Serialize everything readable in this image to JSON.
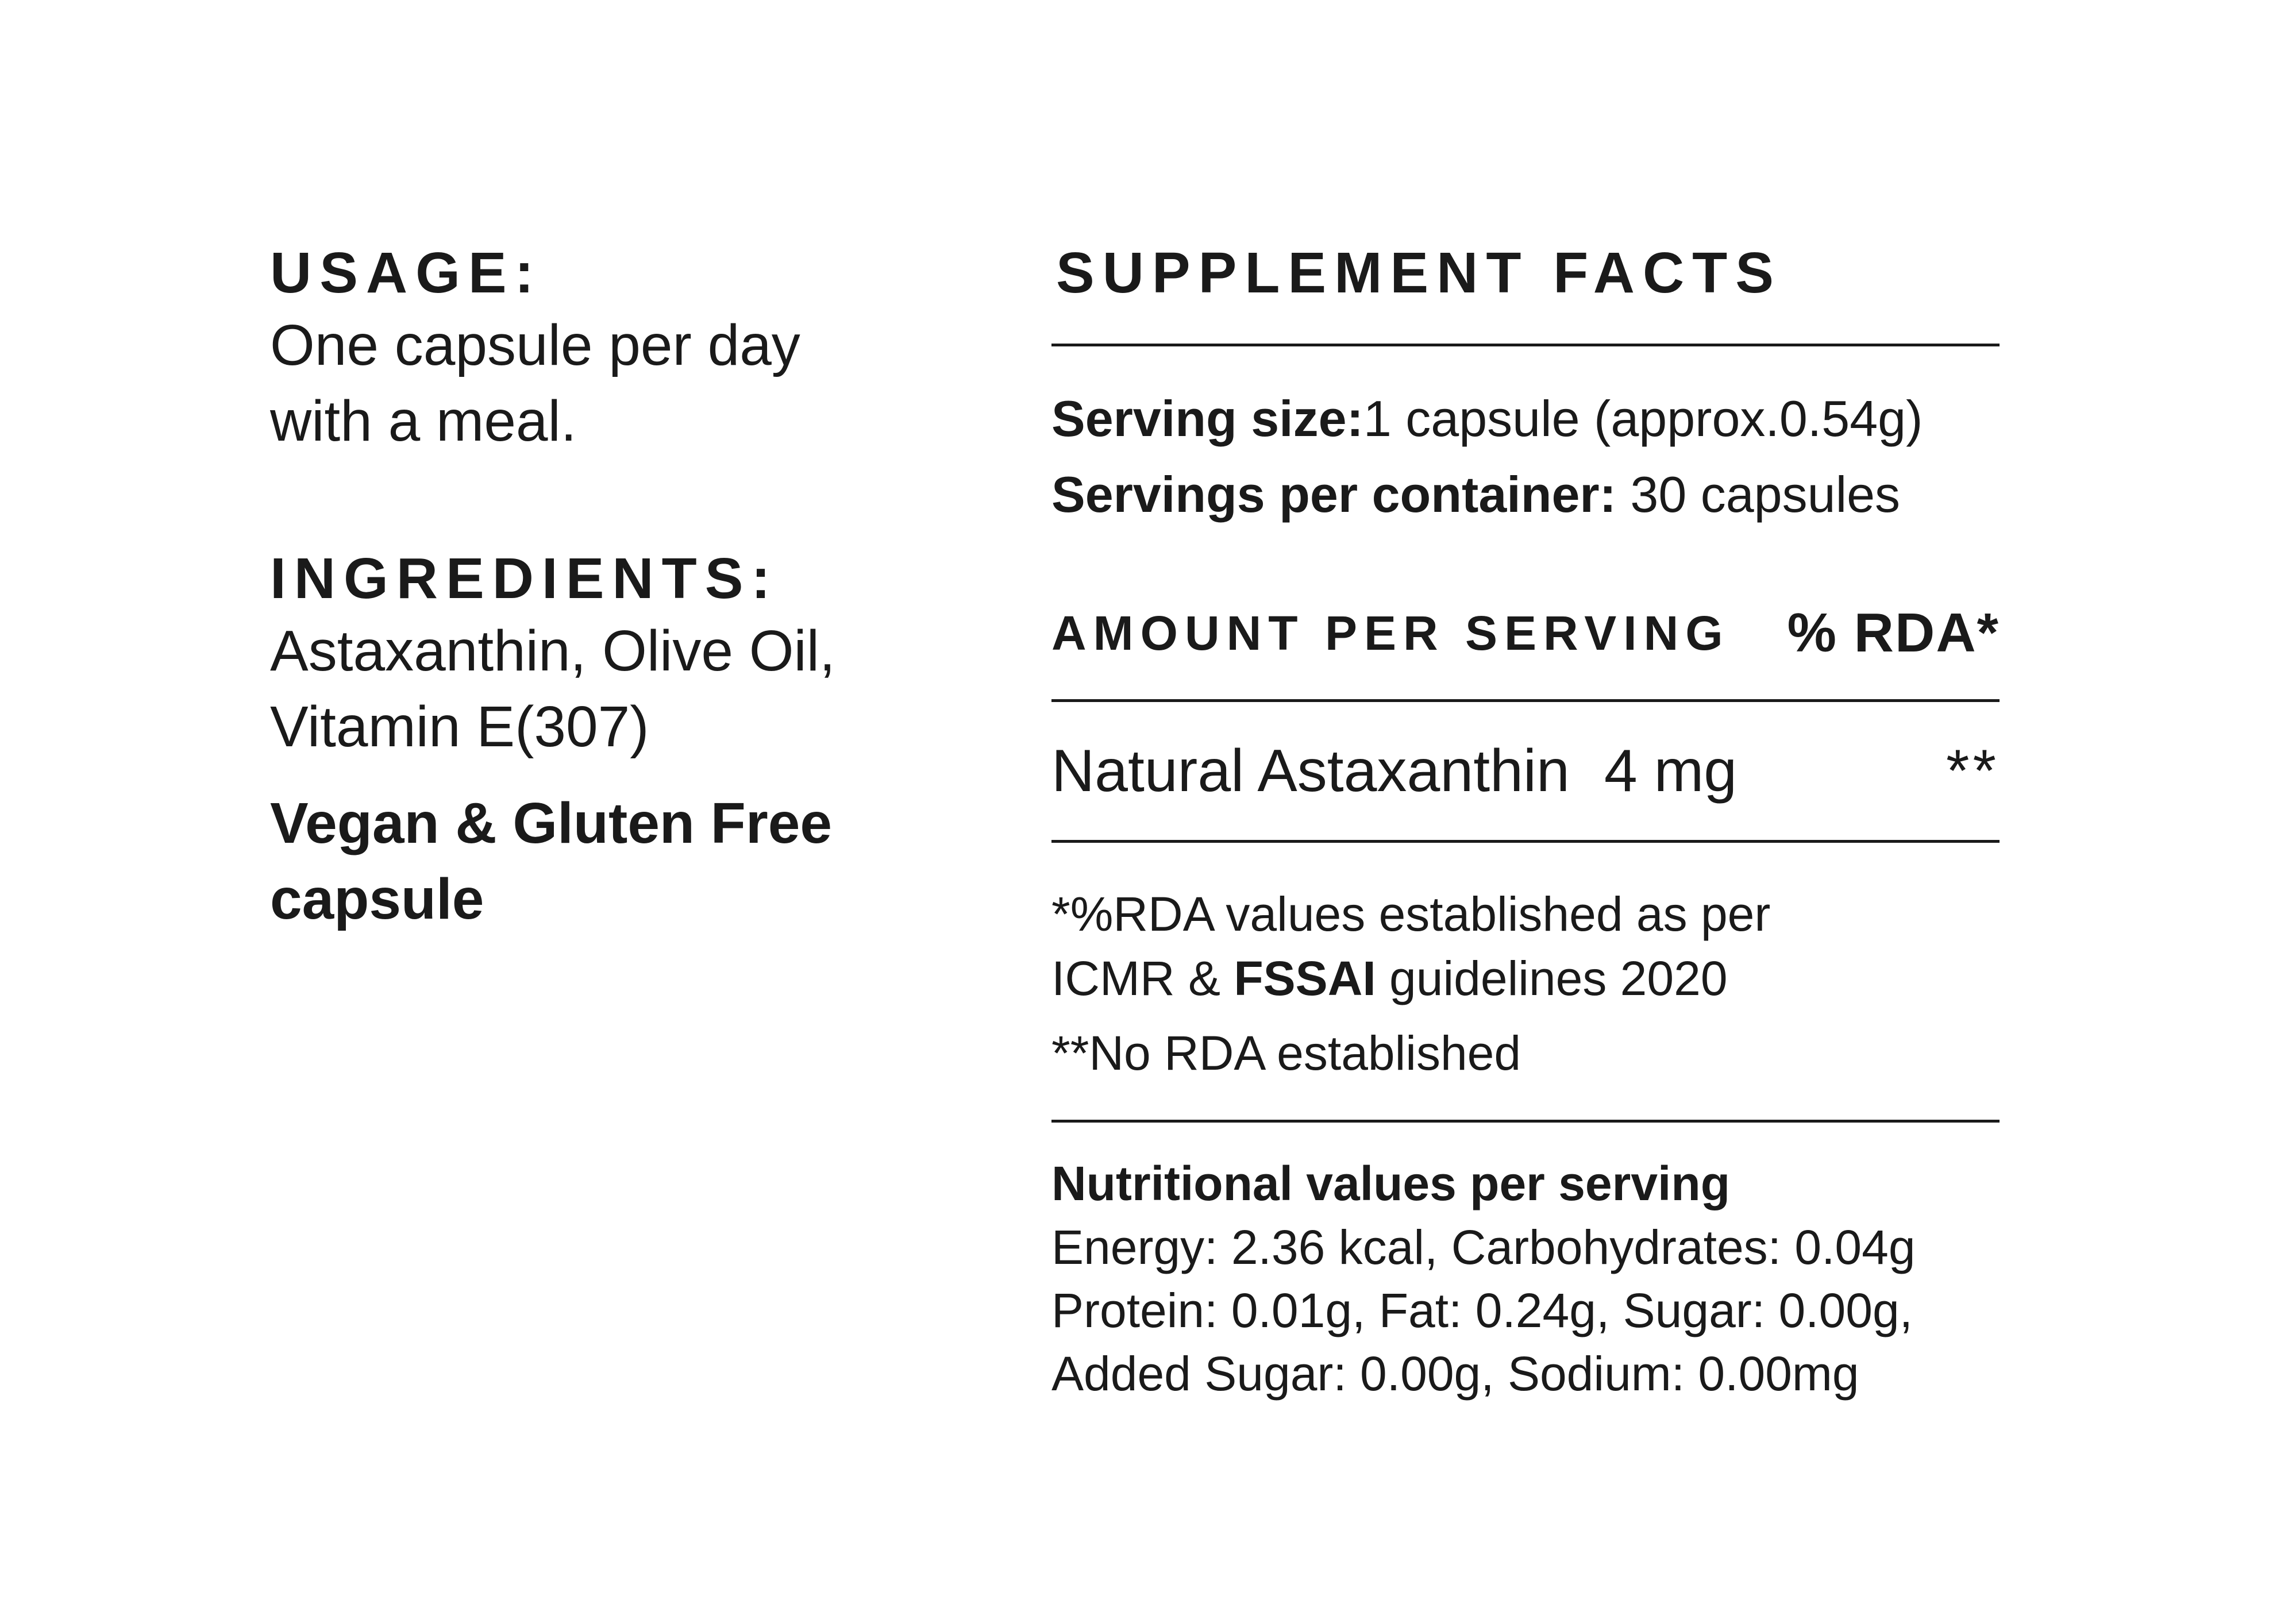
{
  "usage": {
    "heading": "USAGE:",
    "text_line1": "One capsule per day",
    "text_line2": "with a meal."
  },
  "ingredients": {
    "heading": "INGREDIENTS:",
    "text_line1": "Astaxanthin, Olive Oil,",
    "text_line2": "Vitamin E(307)"
  },
  "vegan": {
    "line1": "Vegan & Gluten Free",
    "line2": "capsule"
  },
  "supplement_facts": {
    "title": "SUPPLEMENT FACTS",
    "serving_size_label": "Serving size:",
    "serving_size_value": "1 capsule (approx.0.54g)",
    "servings_per_container_label": "Servings per container:",
    "servings_per_container_value": "30 capsules",
    "amount_per_serving_label": "AMOUNT PER SERVING",
    "rda_label": "% RDA*",
    "nutrient_name": "Natural Astaxanthin",
    "nutrient_amount": "4 mg",
    "nutrient_rda": "**",
    "note1_line1": "*%RDA values established as per",
    "note1_line2_pre": "ICMR & ",
    "note1_line2_bold": "FSSAI",
    "note1_line2_post": " guidelines 2020",
    "note2": "**No RDA established",
    "nutrition_title": "Nutritional values per serving",
    "nutrition_line1": "Energy: 2.36 kcal, Carbohydrates: 0.04g",
    "nutrition_line2": "Protein: 0.01g, Fat: 0.24g, Sugar: 0.00g,",
    "nutrition_line3": "Added Sugar: 0.00g, Sodium: 0.00mg"
  }
}
